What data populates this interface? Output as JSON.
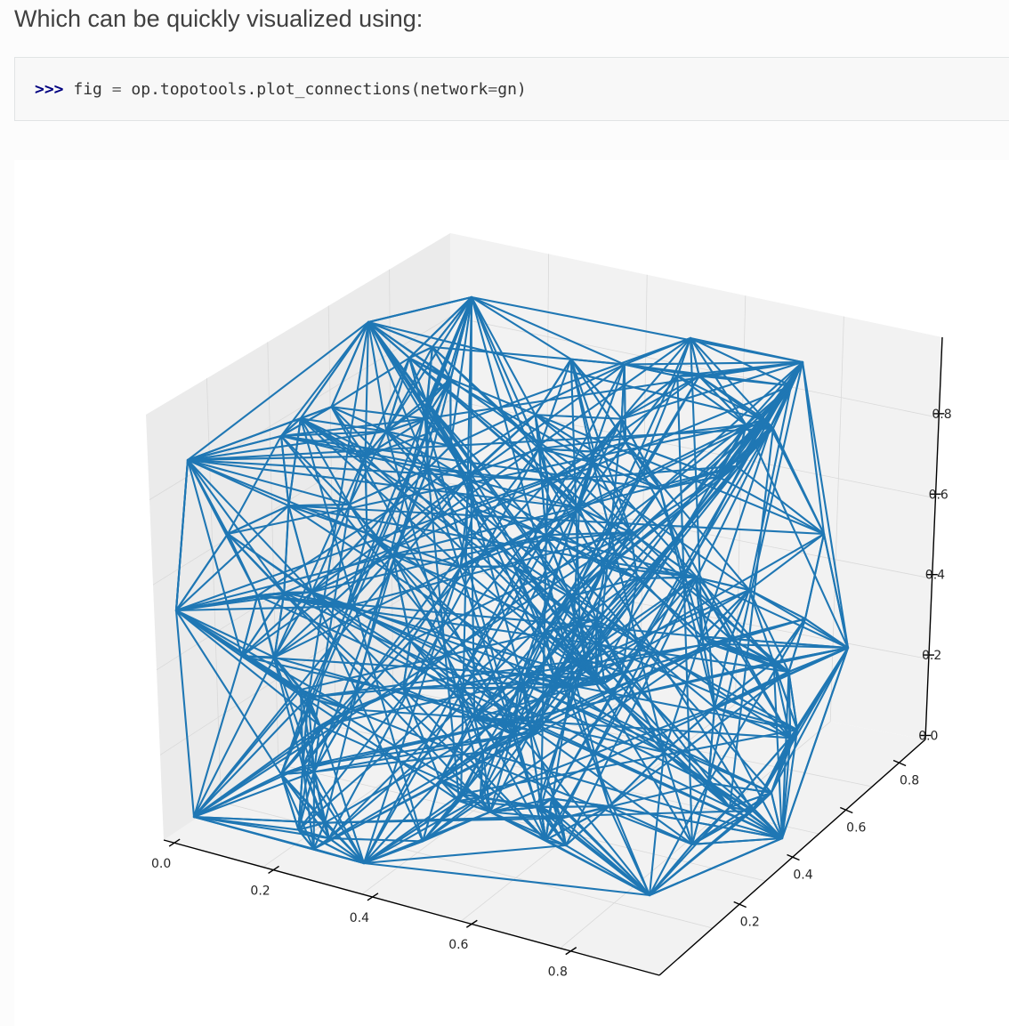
{
  "intro_text": "Which can be quickly visualized using:",
  "code": {
    "prompt": ">>>",
    "name": "fig",
    "op": "=",
    "call": "op.topotools.plot_connections",
    "open": "(",
    "arg_name": "network",
    "arg_op": "=",
    "arg_value": "gn",
    "close": ")"
  },
  "colors": {
    "line": "#1f77b4",
    "pane_light": "#f2f2f2",
    "pane_dark": "#ebebeb",
    "grid": "#d9d9d9",
    "axis": "#000000"
  },
  "chart_data": {
    "type": "3d-line-network",
    "title": "",
    "xlabel": "",
    "ylabel": "",
    "zlabel": "",
    "x_ticks": [
      "0.0",
      "0.2",
      "0.4",
      "0.6",
      "0.8"
    ],
    "y_ticks": [
      "0.2",
      "0.4",
      "0.6",
      "0.8"
    ],
    "z_ticks": [
      "0.0",
      "0.2",
      "0.4",
      "0.6",
      "0.8"
    ],
    "grid": true,
    "series_color": "#1f77b4"
  }
}
